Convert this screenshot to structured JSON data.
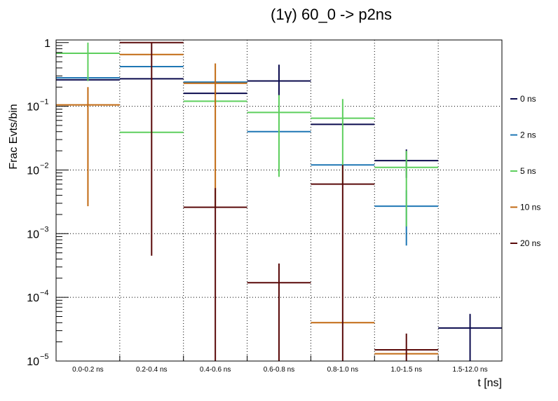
{
  "chart_data": {
    "type": "histogram",
    "title": "(1γ) 60_0 -> p2ns",
    "xlabel": "t [ns]",
    "ylabel": "Frac Evts/bin",
    "yscale": "log",
    "ylim": [
      1e-05,
      1.1
    ],
    "grid": true,
    "legend_position": "right",
    "categories": [
      "0.0-0.2 ns",
      "0.2-0.4 ns",
      "0.4-0.6 ns",
      "0.6-0.8 ns",
      "0.8-1.0 ns",
      "1.0-1.5 ns",
      "1.5-12.0 ns"
    ],
    "y_ticks": [
      {
        "value": 1,
        "mantissa": "1",
        "exponent": ""
      },
      {
        "value": 0.1,
        "mantissa": "10",
        "exponent": "−1"
      },
      {
        "value": 0.01,
        "mantissa": "10",
        "exponent": "−2"
      },
      {
        "value": 0.001,
        "mantissa": "10",
        "exponent": "−3"
      },
      {
        "value": 0.0001,
        "mantissa": "10",
        "exponent": "−4"
      },
      {
        "value": 1e-05,
        "mantissa": "10",
        "exponent": "−5"
      }
    ],
    "series": [
      {
        "name": "0 ns",
        "color": "#0b0b4e",
        "values": [
          0.26,
          0.27,
          0.16,
          0.25,
          0.052,
          0.014,
          3.3e-05
        ],
        "err_low": [
          0.25,
          0.26,
          0.15,
          0.13,
          0.05,
          0.0075,
          1e-05
        ],
        "err_high": [
          0.27,
          0.28,
          0.17,
          0.45,
          0.054,
          0.021,
          5.5e-05
        ]
      },
      {
        "name": "2 ns",
        "color": "#1f77b4",
        "values": [
          0.28,
          0.42,
          0.24,
          0.04,
          0.012,
          0.0027,
          null
        ],
        "err_low": [
          0.27,
          0.41,
          0.23,
          0.035,
          0.0118,
          0.00065,
          null
        ],
        "err_high": [
          0.29,
          0.43,
          0.25,
          0.045,
          0.0122,
          0.0048,
          null
        ]
      },
      {
        "name": "5 ns",
        "color": "#5ecf5e",
        "values": [
          0.68,
          0.039,
          0.12,
          0.08,
          0.065,
          0.011,
          null
        ],
        "err_low": [
          0.25,
          0.038,
          0.11,
          0.0078,
          0.006,
          0.0013,
          null
        ],
        "err_high": [
          1.0,
          0.04,
          0.13,
          0.15,
          0.13,
          0.02,
          null
        ]
      },
      {
        "name": "10 ns",
        "color": "#c26a13",
        "values": [
          0.105,
          0.65,
          0.23,
          null,
          4e-05,
          1.3e-05,
          null
        ],
        "err_low": [
          0.0027,
          0.64,
          0.0025,
          null,
          4e-05,
          1.3e-05,
          null
        ],
        "err_high": [
          0.2,
          0.66,
          0.47,
          null,
          4e-05,
          1.3e-05,
          null
        ]
      },
      {
        "name": "20 ns",
        "color": "#5a0a0a",
        "values": [
          null,
          1.0,
          0.0026,
          0.00017,
          0.006,
          1.5e-05,
          null
        ],
        "err_low": [
          null,
          0.00045,
          1e-05,
          1e-05,
          1e-05,
          1e-05,
          null
        ],
        "err_high": [
          null,
          1.0,
          0.0052,
          0.00034,
          0.012,
          2.7e-05,
          null
        ]
      }
    ]
  }
}
